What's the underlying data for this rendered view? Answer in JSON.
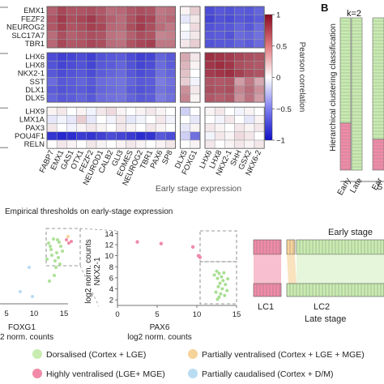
{
  "heatmap": {
    "rows": [
      "EMX1",
      "FEZF2",
      "NEUROG2",
      "SLC17A7",
      "TBR1",
      "LHX6",
      "LHX8",
      "NKX2-1",
      "SST",
      "DLX1",
      "DLX5",
      "LHX9",
      "LMX1A",
      "PAX3",
      "POU4F1",
      "RELN"
    ],
    "cols": [
      "FABP7",
      "EMX1",
      "GAS1",
      "OTX1",
      "FEZF2",
      "NEUROD1",
      "CALB2",
      "GLI3",
      "EOMES",
      "NEUROG2",
      "TBR1",
      "PAX6",
      "SP8",
      "DLX5",
      "FOXG1",
      "LHX6",
      "LHX8",
      "NKX2-1",
      "SHH",
      "GSX2",
      "NKX6-2"
    ],
    "col_groups": [
      13,
      2,
      6
    ],
    "row_groups": [
      5,
      6,
      5
    ],
    "xlabel": "Early stage expression",
    "values": [
      [
        0.65,
        0.75,
        0.7,
        0.7,
        0.72,
        0.68,
        0.6,
        0.62,
        0.68,
        0.72,
        0.7,
        0.55,
        0.58,
        0.05,
        0.2,
        -0.75,
        -0.7,
        -0.72,
        -0.68,
        -0.7,
        -0.65
      ],
      [
        0.7,
        0.8,
        0.72,
        0.75,
        0.8,
        0.72,
        0.65,
        0.6,
        0.7,
        0.78,
        0.75,
        0.58,
        0.62,
        -0.1,
        0.1,
        -0.78,
        -0.72,
        -0.75,
        -0.7,
        -0.72,
        -0.68
      ],
      [
        0.68,
        0.78,
        0.7,
        0.72,
        0.78,
        0.75,
        0.62,
        0.6,
        0.72,
        0.8,
        0.72,
        0.6,
        0.55,
        0.0,
        0.15,
        -0.72,
        -0.7,
        -0.7,
        -0.65,
        -0.7,
        -0.62
      ],
      [
        0.6,
        0.72,
        0.65,
        0.68,
        0.72,
        0.7,
        0.58,
        0.55,
        0.65,
        0.72,
        0.7,
        0.5,
        0.52,
        -0.05,
        0.1,
        -0.7,
        -0.68,
        -0.72,
        -0.62,
        -0.65,
        -0.6
      ],
      [
        0.62,
        0.75,
        0.68,
        0.7,
        0.75,
        0.72,
        0.6,
        0.58,
        0.7,
        0.75,
        0.78,
        0.55,
        0.55,
        0.1,
        0.2,
        -0.72,
        -0.7,
        -0.7,
        -0.65,
        -0.68,
        -0.62
      ],
      [
        -0.75,
        -0.8,
        -0.78,
        -0.75,
        -0.8,
        -0.72,
        -0.7,
        -0.68,
        -0.75,
        -0.8,
        -0.78,
        -0.65,
        -0.7,
        0.35,
        0.1,
        0.85,
        0.82,
        0.8,
        0.75,
        0.72,
        0.7
      ],
      [
        -0.72,
        -0.78,
        -0.75,
        -0.72,
        -0.78,
        -0.7,
        -0.68,
        -0.65,
        -0.72,
        -0.78,
        -0.75,
        -0.62,
        -0.68,
        0.3,
        0.05,
        0.82,
        0.85,
        0.82,
        0.72,
        0.7,
        0.68
      ],
      [
        -0.7,
        -0.75,
        -0.72,
        -0.7,
        -0.75,
        -0.68,
        -0.65,
        -0.62,
        -0.7,
        -0.75,
        -0.72,
        -0.6,
        -0.65,
        0.25,
        0.0,
        0.8,
        0.82,
        0.85,
        0.78,
        0.72,
        0.7
      ],
      [
        -0.62,
        -0.7,
        -0.68,
        -0.65,
        -0.7,
        -0.62,
        -0.6,
        -0.58,
        -0.65,
        -0.7,
        -0.68,
        -0.55,
        -0.6,
        0.2,
        -0.05,
        0.7,
        0.68,
        0.7,
        0.4,
        0.55,
        0.35
      ],
      [
        -0.68,
        -0.72,
        -0.7,
        -0.68,
        -0.72,
        -0.65,
        -0.62,
        -0.6,
        -0.68,
        -0.72,
        -0.7,
        -0.58,
        -0.62,
        0.45,
        0.1,
        0.72,
        0.7,
        0.72,
        0.5,
        0.6,
        0.45
      ],
      [
        -0.65,
        -0.7,
        -0.68,
        -0.65,
        -0.7,
        -0.62,
        -0.6,
        -0.58,
        -0.65,
        -0.7,
        -0.68,
        -0.55,
        -0.6,
        0.5,
        0.05,
        0.68,
        0.65,
        0.68,
        0.45,
        0.58,
        0.4
      ],
      [
        0.05,
        0.1,
        0.0,
        0.05,
        -0.05,
        0.1,
        0.15,
        0.05,
        0.0,
        0.05,
        0.1,
        0.05,
        0.0,
        -0.2,
        0.0,
        0.05,
        0.1,
        0.0,
        -0.05,
        0.05,
        0.0
      ],
      [
        -0.1,
        -0.05,
        -0.1,
        0.2,
        -0.1,
        0.0,
        -0.05,
        0.1,
        -0.1,
        -0.05,
        0.0,
        0.1,
        -0.05,
        0.0,
        -0.1,
        0.0,
        -0.05,
        0.1,
        0.0,
        -0.1,
        0.05
      ],
      [
        0.1,
        0.0,
        -0.05,
        0.05,
        0.1,
        0.05,
        0.0,
        0.1,
        0.05,
        0.0,
        0.1,
        0.05,
        0.0,
        -0.1,
        0.05,
        0.1,
        0.05,
        0.0,
        0.1,
        0.05,
        0.1
      ],
      [
        -0.85,
        -0.9,
        -0.88,
        -0.82,
        -0.85,
        -0.8,
        -0.75,
        -0.78,
        -0.82,
        -0.88,
        -0.85,
        -0.7,
        -0.75,
        -0.2,
        -0.6,
        -0.05,
        0.1,
        0.05,
        0.15,
        0.1,
        0.0
      ],
      [
        0.0,
        0.1,
        0.05,
        0.0,
        0.1,
        0.05,
        0.0,
        0.05,
        0.1,
        0.05,
        0.0,
        0.05,
        0.1,
        0.0,
        0.05,
        0.1,
        0.0,
        0.05,
        0.1,
        0.05,
        0.1
      ]
    ]
  },
  "colorbar": {
    "label": "Pearson correlation",
    "ticks": [
      "1",
      "0.5",
      "0",
      "−0.5",
      "−1"
    ],
    "tick_values": [
      1,
      0.5,
      0,
      -0.5,
      -1
    ]
  },
  "panel_b": {
    "letter": "B",
    "k_label": "k=2",
    "ylabel": "Hierarchical clustering classification",
    "x_ticks": [
      "Early",
      "Late"
    ],
    "partial_tick": "Ear",
    "partial_letter": "S"
  },
  "thresholds": {
    "title": "Empirical thresholds on early-stage expression",
    "left": {
      "xlabel": "FOXG1",
      "xlabel2": "2 norm. counts",
      "ticks": [
        "5",
        "10",
        "15"
      ]
    },
    "right": {
      "xlabel": "PAX6",
      "xlabel2": "log2 norm. counts",
      "ylabel": "log2 norm. counts",
      "ylabel2": "NKX2-1",
      "x_ticks": [
        "0",
        "5",
        "10",
        "15"
      ],
      "y_ticks": [
        "14",
        "12",
        "10",
        "8",
        "6",
        "4",
        "2"
      ],
      "x_ticks_values": [
        0,
        5,
        10,
        15
      ],
      "y_ticks_values": [
        14,
        12,
        10,
        8,
        6,
        4,
        2
      ]
    }
  },
  "flow": {
    "top_label": "Early stage",
    "bottom_label": "Late stage",
    "lc1": "LC1",
    "lc2": "LC2"
  },
  "legend": {
    "items": [
      {
        "label": "Dorsalised (Cortex + LGE)",
        "color": "#c8ecb0"
      },
      {
        "label": "Partially ventralised (Cortex + LGE + MGE)",
        "color": "#f6d39a"
      },
      {
        "label": "Highly ventralised (LGE+ MGE)",
        "color": "#f08aa8"
      },
      {
        "label": "Partially caudalised (Cortex + D/M)",
        "color": "#b9dcf2"
      }
    ]
  },
  "colors": {
    "positive": "#b2182b",
    "negative": "#2b2bd6",
    "dorsal": "#c8ecb0",
    "ventral_high": "#f08aa8",
    "ventral_partial": "#f6d39a",
    "caudal": "#b9dcf2",
    "dorsal_point": "#9fdc86"
  }
}
